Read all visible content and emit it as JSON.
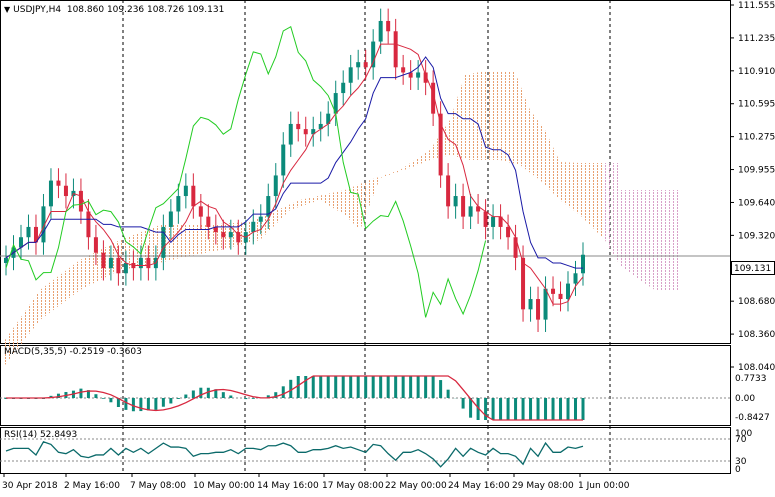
{
  "header": {
    "symbol": "USDJPY,H4",
    "ohlc": "108.860 109.236 108.726 109.131"
  },
  "indicators": {
    "macd_title": "MACD(5,35,5) -0.2519 -0.3603",
    "rsi_title": "RSI(14) 52.8493"
  },
  "current_price": "109.131",
  "colors": {
    "bull_candle": "#0b8a7a",
    "bear_candle": "#d8283f",
    "tenkan": "#d8283f",
    "kijun": "#1a1aa6",
    "chikou": "#22cc22",
    "kumo_bull": "#e8a070",
    "kumo_bear": "#d8a0c8",
    "macd_hist": "#0b8a7a",
    "macd_signal": "#d8283f",
    "rsi_line": "#0b6a6a"
  },
  "chart_data": {
    "type": "candlestick",
    "title": "USDJPY,H4",
    "ylim": [
      108.04,
      111.555
    ],
    "y_ticks": [
      "111.555",
      "111.235",
      "110.910",
      "110.595",
      "110.275",
      "109.955",
      "109.640",
      "109.320",
      "109.000",
      "108.680",
      "108.360",
      "108.040"
    ],
    "x_ticks": [
      "30 Apr 2018",
      "2 May 16:00",
      "7 May 08:00",
      "10 May 00:00",
      "14 May 16:00",
      "17 May 08:00",
      "22 May 00:00",
      "24 May 16:00",
      "29 May 08:00",
      "1 Jun 00:00"
    ],
    "close_series": [
      109.1,
      109.2,
      109.3,
      109.4,
      109.25,
      109.6,
      109.85,
      109.8,
      109.7,
      109.75,
      109.55,
      109.3,
      109.15,
      109.0,
      109.1,
      108.95,
      109.05,
      109.0,
      109.1,
      109.0,
      109.1,
      109.4,
      109.55,
      109.7,
      109.8,
      109.6,
      109.5,
      109.4,
      109.35,
      109.3,
      109.35,
      109.25,
      109.35,
      109.45,
      109.5,
      109.7,
      109.9,
      110.2,
      110.4,
      110.35,
      110.3,
      110.35,
      110.4,
      110.5,
      110.7,
      110.8,
      110.95,
      111.0,
      110.95,
      111.2,
      111.4,
      111.3,
      110.95,
      110.9,
      110.85,
      110.9,
      110.8,
      110.5,
      109.9,
      109.6,
      109.7,
      109.5,
      109.6,
      109.55,
      109.4,
      109.5,
      109.4,
      109.3,
      109.1,
      108.6,
      108.7,
      108.5,
      108.8,
      108.75,
      108.7,
      108.85,
      108.95,
      109.13
    ],
    "macd": {
      "main": -0.2519,
      "signal": -0.3603,
      "levels": [
        "0.7733",
        "0.00",
        "-0.8427"
      ]
    },
    "rsi": {
      "value": 52.8493,
      "levels": [
        "70",
        "30",
        "0"
      ],
      "max_label": "100"
    }
  }
}
